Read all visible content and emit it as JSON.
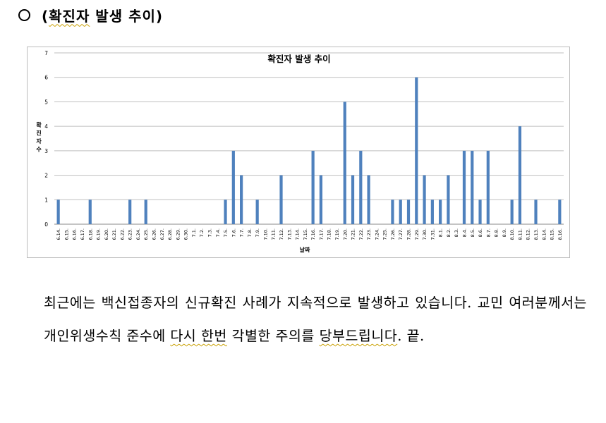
{
  "heading": {
    "prefix": "(",
    "underlined": "확진자",
    "rest": " 발생 추이)"
  },
  "chart_data": {
    "type": "bar",
    "title": "확진자 발생 추이",
    "xlabel": "날짜",
    "ylabel": "확진자수",
    "ylim": [
      0,
      7
    ],
    "yticks": [
      0,
      1,
      2,
      3,
      4,
      5,
      6,
      7
    ],
    "grid": true,
    "bar_color": "#4f81bd",
    "categories": [
      "6.14.",
      "6.15.",
      "6.16.",
      "6.17.",
      "6.18.",
      "6.19.",
      "6.20.",
      "6.21.",
      "6.22.",
      "6.23.",
      "6.24.",
      "6.25.",
      "6.26.",
      "6.27.",
      "6.28.",
      "6.29.",
      "6.30.",
      "7.1.",
      "7.2.",
      "7.3.",
      "7.4.",
      "7.5.",
      "7.6.",
      "7.7.",
      "7.8.",
      "7.9.",
      "7.10.",
      "7.11.",
      "7.12.",
      "7.13.",
      "7.14.",
      "7.15.",
      "7.16.",
      "7.17.",
      "7.18.",
      "7.19.",
      "7.20.",
      "7.21.",
      "7.22.",
      "7.23.",
      "7.24.",
      "7.25.",
      "7.26.",
      "7.27.",
      "7.28.",
      "7.29.",
      "7.30.",
      "7.31.",
      "8.1.",
      "8.2.",
      "8.3.",
      "8.4.",
      "8.5.",
      "8.6.",
      "8.7.",
      "8.8.",
      "8.9.",
      "8.10.",
      "8.11.",
      "8.12.",
      "8.13.",
      "8.14.",
      "8.15.",
      "8.16."
    ],
    "values": [
      1,
      0,
      0,
      0,
      1,
      0,
      0,
      0,
      0,
      1,
      0,
      1,
      0,
      0,
      0,
      0,
      0,
      0,
      0,
      0,
      0,
      1,
      3,
      2,
      0,
      1,
      0,
      0,
      2,
      0,
      0,
      0,
      3,
      2,
      0,
      0,
      5,
      2,
      3,
      2,
      0,
      0,
      1,
      1,
      1,
      6,
      2,
      1,
      1,
      2,
      0,
      3,
      3,
      1,
      3,
      0,
      0,
      1,
      4,
      0,
      1,
      0,
      0,
      1
    ]
  },
  "paragraph": {
    "p1": "최근에는 백신접종자의 신규확진 사례가 지속적으로 발생하고 있습니다. 교민 여러분께서는 개인위생수칙 준수에 ",
    "u1": "다시 한번",
    "p2": " 각별한 주의를 ",
    "u2": "당부드립니다",
    "p3": ". 끝."
  }
}
